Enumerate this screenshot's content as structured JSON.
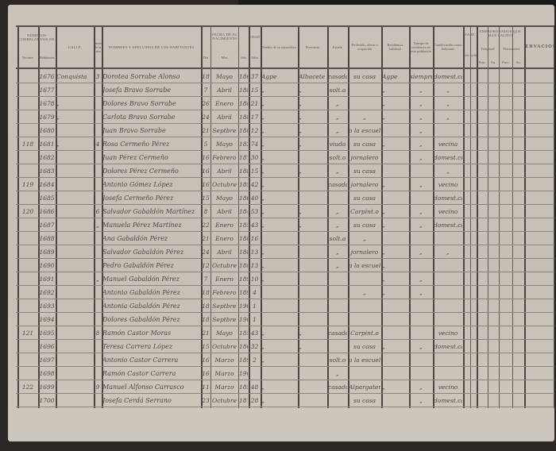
{
  "document": {
    "header": {
      "correlativos_group": "Números correlativos de",
      "vecinos": "Vecinos",
      "habitantes": "Habitantes",
      "calle": "Calle",
      "numero_casa": "Número de la casa",
      "nombres": "Nombres y apellidos de los habitantes",
      "fecha_group": "Fecha de su nacimiento",
      "dia": "Día",
      "mes": "Mes",
      "anio": "Año",
      "edad_group": "Edad",
      "edad": "Años",
      "pueblo": "Pueblo de su naturaleza",
      "provincia": "Provincia",
      "estado": "Estado",
      "profesion": "Profesión, oficio u ocupación",
      "residencia": "Residencia habitual",
      "tiempo": "Tiempo de residencia en esta población",
      "cualificacion": "Cualificación como habitante",
      "sabe_group": "Sabe",
      "leer": "leer",
      "escribir": "escribir",
      "empadronados_group": "Empadronados que han salido",
      "temporal": "Temporal",
      "permanente": "Permanente",
      "pres": "Pres.",
      "au": "Au.",
      "observaciones": "Observaciones"
    },
    "rows": [
      {
        "vec": "",
        "hab": "1676",
        "calle": "Conquista",
        "casa": "3",
        "nombre": "Dorotea Sorrabe Alonso",
        "dia": "18",
        "mes": "Mayo",
        "anio": "1863",
        "edad": "37",
        "pueblo": "Agpe",
        "provincia": "Albacete",
        "estado": "casada",
        "profesion": "su casa",
        "residencia": "Agpe",
        "tiempo": "siempre",
        "cualidad": "domest.ca"
      },
      {
        "vec": "",
        "hab": "1677",
        "calle": "",
        "casa": "",
        "nombre": "Josefa Bravo Sorrabe",
        "dia": "7",
        "mes": "Abril",
        "anio": "1885",
        "edad": "15",
        "pueblo": "„",
        "provincia": "„",
        "estado": "solt.a",
        "profesion": "",
        "residencia": "„",
        "tiempo": "„",
        "cualidad": "„"
      },
      {
        "vec": "",
        "hab": "1678",
        "calle": "„",
        "casa": "",
        "nombre": "Dolores Bravo Sorrabe",
        "dia": "26",
        "mes": "Enero",
        "anio": "1880",
        "edad": "21",
        "pueblo": "„",
        "provincia": "„",
        "estado": "„",
        "profesion": "",
        "residencia": "„",
        "tiempo": "„",
        "cualidad": "„"
      },
      {
        "vec": "",
        "hab": "1679",
        "calle": "„",
        "casa": "",
        "nombre": "Carlota Bravo Sorrabe",
        "dia": "24",
        "mes": "Abril",
        "anio": "1884",
        "edad": "17",
        "pueblo": "„",
        "provincia": "„",
        "estado": "„",
        "profesion": "„",
        "residencia": "„",
        "tiempo": "„",
        "cualidad": "„"
      },
      {
        "vec": "",
        "hab": "1680",
        "calle": "",
        "casa": "",
        "nombre": "Juan Bravo Sorrabe",
        "dia": "21",
        "mes": "Septbre",
        "anio": "1888",
        "edad": "12",
        "pueblo": "„",
        "provincia": "„",
        "estado": "„",
        "profesion": "a la escuela",
        "residencia": "",
        "tiempo": "„",
        "cualidad": ""
      },
      {
        "vec": "118",
        "hab": "1681",
        "calle": "„",
        "casa": "4",
        "nombre": "Rosa Cermeño Pérez",
        "dia": "5",
        "mes": "Mayo",
        "anio": "1827",
        "edad": "74",
        "pueblo": "„",
        "provincia": "„",
        "estado": "viuda",
        "profesion": "su casa",
        "residencia": "„",
        "tiempo": "„",
        "cualidad": "vecina"
      },
      {
        "vec": "",
        "hab": "1682",
        "calle": "",
        "casa": "",
        "nombre": "Juan Pérez Cermeño",
        "dia": "16",
        "mes": "Febrero",
        "anio": "1871",
        "edad": "30",
        "pueblo": "„",
        "provincia": "",
        "estado": "solt.o",
        "profesion": "jornalero",
        "residencia": "",
        "tiempo": "„",
        "cualidad": "domest.co"
      },
      {
        "vec": "",
        "hab": "1683",
        "calle": "",
        "casa": "",
        "nombre": "Dolores Pérez Cermeño",
        "dia": "16",
        "mes": "Abril",
        "anio": "1886",
        "edad": "15",
        "pueblo": "„",
        "provincia": "„",
        "estado": "„",
        "profesion": "su casa",
        "residencia": "",
        "tiempo": "",
        "cualidad": "„"
      },
      {
        "vec": "119",
        "hab": "1684",
        "calle": "",
        "casa": "",
        "nombre": "Antonio Gómez López",
        "dia": "16",
        "mes": "Octubre",
        "anio": "1858",
        "edad": "42",
        "pueblo": "„",
        "provincia": "",
        "estado": "casado",
        "profesion": "jornalero",
        "residencia": "„",
        "tiempo": "„",
        "cualidad": "vecino"
      },
      {
        "vec": "",
        "hab": "1685",
        "calle": "",
        "casa": "",
        "nombre": "Josefa Cermeño Pérez",
        "dia": "15",
        "mes": "Mayo",
        "anio": "1861",
        "edad": "40",
        "pueblo": "„",
        "provincia": "",
        "estado": "",
        "profesion": "su casa",
        "residencia": "",
        "tiempo": "",
        "cualidad": "domest.ca"
      },
      {
        "vec": "120",
        "hab": "1686",
        "calle": "",
        "casa": "6",
        "nombre": "Salvador Gabaldón Martínez",
        "dia": "8",
        "mes": "Abril",
        "anio": "1848",
        "edad": "53",
        "pueblo": "„",
        "provincia": "„",
        "estado": "„",
        "profesion": "Carpint.o",
        "residencia": "„",
        "tiempo": "„",
        "cualidad": "vecino"
      },
      {
        "vec": "",
        "hab": "1687",
        "calle": "",
        "casa": "„",
        "nombre": "Manuela Pérez Martínez",
        "dia": "22",
        "mes": "Enero",
        "anio": "1858",
        "edad": "43",
        "pueblo": "„",
        "provincia": "„",
        "estado": "„",
        "profesion": "su casa",
        "residencia": "„",
        "tiempo": "„",
        "cualidad": "domest.ca"
      },
      {
        "vec": "",
        "hab": "1688",
        "calle": "",
        "casa": "",
        "nombre": "Ana Gabaldón Pérez",
        "dia": "21",
        "mes": "Enero",
        "anio": "1885",
        "edad": "16",
        "pueblo": "",
        "provincia": "",
        "estado": "solt.a",
        "profesion": "„",
        "residencia": "",
        "tiempo": "",
        "cualidad": ""
      },
      {
        "vec": "",
        "hab": "1689",
        "calle": "",
        "casa": "",
        "nombre": "Salvador Gabaldón Pérez",
        "dia": "24",
        "mes": "Abril",
        "anio": "1888",
        "edad": "13",
        "pueblo": "„",
        "provincia": "",
        "estado": "„",
        "profesion": "jornalero",
        "residencia": "„",
        "tiempo": "„",
        "cualidad": "„"
      },
      {
        "vec": "",
        "hab": "1690",
        "calle": "",
        "casa": "",
        "nombre": "Pedro Gabaldón Pérez",
        "dia": "12",
        "mes": "Octubre",
        "anio": "1888",
        "edad": "13",
        "pueblo": "„",
        "provincia": "",
        "estado": "„",
        "profesion": "a la escuela",
        "residencia": "„",
        "tiempo": "",
        "cualidad": ""
      },
      {
        "vec": "",
        "hab": "1691",
        "calle": "",
        "casa": "„",
        "nombre": "Manuel Gabaldón Pérez",
        "dia": "7",
        "mes": "Enero",
        "anio": "1890",
        "edad": "10",
        "pueblo": "„",
        "provincia": "",
        "estado": "",
        "profesion": "",
        "residencia": "„",
        "tiempo": "„",
        "cualidad": ""
      },
      {
        "vec": "",
        "hab": "1692",
        "calle": "",
        "casa": "",
        "nombre": "Antonio Gabaldón Pérez",
        "dia": "18",
        "mes": "Febrero",
        "anio": "1897",
        "edad": "4",
        "pueblo": "",
        "provincia": "",
        "estado": "",
        "profesion": "„",
        "residencia": "„",
        "tiempo": "„",
        "cualidad": ""
      },
      {
        "vec": "",
        "hab": "1693",
        "calle": "",
        "casa": "",
        "nombre": "Antonia Gabaldón Pérez",
        "dia": "18",
        "mes": "Septbre",
        "anio": "1900",
        "edad": "1",
        "pueblo": "",
        "provincia": "",
        "estado": "",
        "profesion": "",
        "residencia": "",
        "tiempo": "",
        "cualidad": ""
      },
      {
        "vec": "",
        "hab": "1694",
        "calle": "",
        "casa": "",
        "nombre": "Dolores Gabaldón Pérez",
        "dia": "18",
        "mes": "Septbre",
        "anio": "1900",
        "edad": "1",
        "pueblo": "",
        "provincia": "",
        "estado": "",
        "profesion": "",
        "residencia": "",
        "tiempo": "",
        "cualidad": ""
      },
      {
        "vec": "121",
        "hab": "1695",
        "calle": "",
        "casa": "8",
        "nombre": "Ramón Castor Moras",
        "dia": "21",
        "mes": "Mayo",
        "anio": "1857",
        "edad": "43",
        "pueblo": "„",
        "provincia": "„",
        "estado": "casado",
        "profesion": "Carpint.o",
        "residencia": "",
        "tiempo": "",
        "cualidad": "vecino"
      },
      {
        "vec": "",
        "hab": "1696",
        "calle": "",
        "casa": "",
        "nombre": "Teresa Carrera López",
        "dia": "15",
        "mes": "Octubre",
        "anio": "1868",
        "edad": "32",
        "pueblo": "„",
        "provincia": "„",
        "estado": "",
        "profesion": "su casa",
        "residencia": "„",
        "tiempo": "„",
        "cualidad": "domest.ca"
      },
      {
        "vec": "",
        "hab": "1697",
        "calle": "",
        "casa": "",
        "nombre": "Antonio Castor Carrera",
        "dia": "16",
        "mes": "Marzo",
        "anio": "1898",
        "edad": "2",
        "pueblo": "„",
        "provincia": "",
        "estado": "solt.o",
        "profesion": "a la escuela",
        "residencia": "",
        "tiempo": "",
        "cualidad": ""
      },
      {
        "vec": "",
        "hab": "1698",
        "calle": "",
        "casa": "",
        "nombre": "Ramón Castor Carrera",
        "dia": "16",
        "mes": "Marzo",
        "anio": "1901",
        "edad": "",
        "pueblo": "",
        "provincia": "",
        "estado": "„",
        "profesion": "",
        "residencia": "",
        "tiempo": "",
        "cualidad": ""
      },
      {
        "vec": "122",
        "hab": "1699",
        "calle": "",
        "casa": "9",
        "nombre": "Manuel Alfonso Carrasco",
        "dia": "11",
        "mes": "Marzo",
        "anio": "1853",
        "edad": "48",
        "pueblo": "„",
        "provincia": "",
        "estado": "casado",
        "profesion": "Alpargatero",
        "residencia": "„",
        "tiempo": "„",
        "cualidad": "vecino"
      },
      {
        "vec": "",
        "hab": "1700",
        "calle": "",
        "casa": "",
        "nombre": "Josefa Cerdá Serrano",
        "dia": "23",
        "mes": "Octubre",
        "anio": "1873",
        "edad": "28",
        "pueblo": "„",
        "provincia": "",
        "estado": "",
        "profesion": "su casa",
        "residencia": "",
        "tiempo": "„",
        "cualidad": "domest.ca"
      }
    ]
  },
  "colors": {
    "paper": "#c8c2b8",
    "ink": "#4e4843",
    "rule": "#5e5a55",
    "background": "#2a2724"
  }
}
